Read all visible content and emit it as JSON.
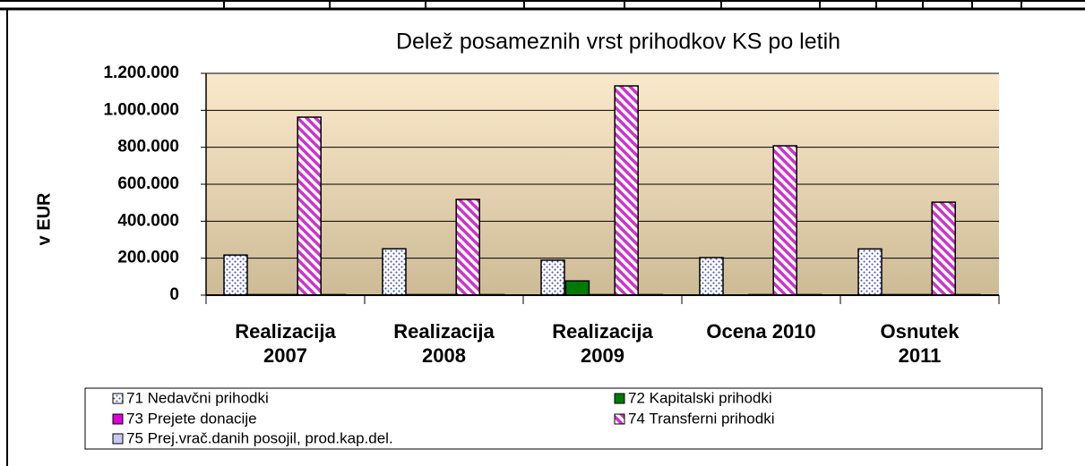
{
  "chart_data": {
    "type": "bar",
    "title": "Delež posameznih vrst prihodkov KS po letih",
    "y_label": "v EUR",
    "categories": [
      "Realizacija 2007",
      "Realizacija 2008",
      "Realizacija 2009",
      "Ocena 2010",
      "Osnutek 2011"
    ],
    "series": [
      {
        "name": "71 Nedavčni prihodki",
        "color": "#3344bb",
        "pattern": "dots",
        "values": [
          217000,
          251000,
          189000,
          203000,
          250000
        ]
      },
      {
        "name": "72 Kapitalski prihodki",
        "color": "#007a00",
        "values": [
          3000,
          3000,
          77000,
          0,
          3000
        ]
      },
      {
        "name": "73 Prejete donacije",
        "color": "#dd00dd",
        "values": [
          3000,
          3000,
          3000,
          3000,
          3000
        ]
      },
      {
        "name": "74 Transferni prihodki",
        "color": "#cc33cc",
        "pattern": "stripes",
        "values": [
          963000,
          518000,
          1132000,
          808000,
          503000
        ]
      },
      {
        "name": "75 Prej.vrač.danih posojil, prod.kap.del.",
        "color": "#c8c8f0",
        "values": [
          3000,
          3000,
          3000,
          3000,
          3000
        ]
      }
    ],
    "ylim": [
      0,
      1200000
    ],
    "yticks": [
      0,
      {
        "value": 200000,
        "label": "200.000"
      },
      {
        "value": 400000,
        "label": "400.000"
      },
      {
        "value": 600000,
        "label": "600.000"
      },
      {
        "value": 800000,
        "label": "800.000"
      },
      {
        "value": 1000000,
        "label": "1.000.000"
      },
      {
        "value": 1200000,
        "label": "1.200.000"
      }
    ],
    "grid": true,
    "legend": "bottom"
  }
}
